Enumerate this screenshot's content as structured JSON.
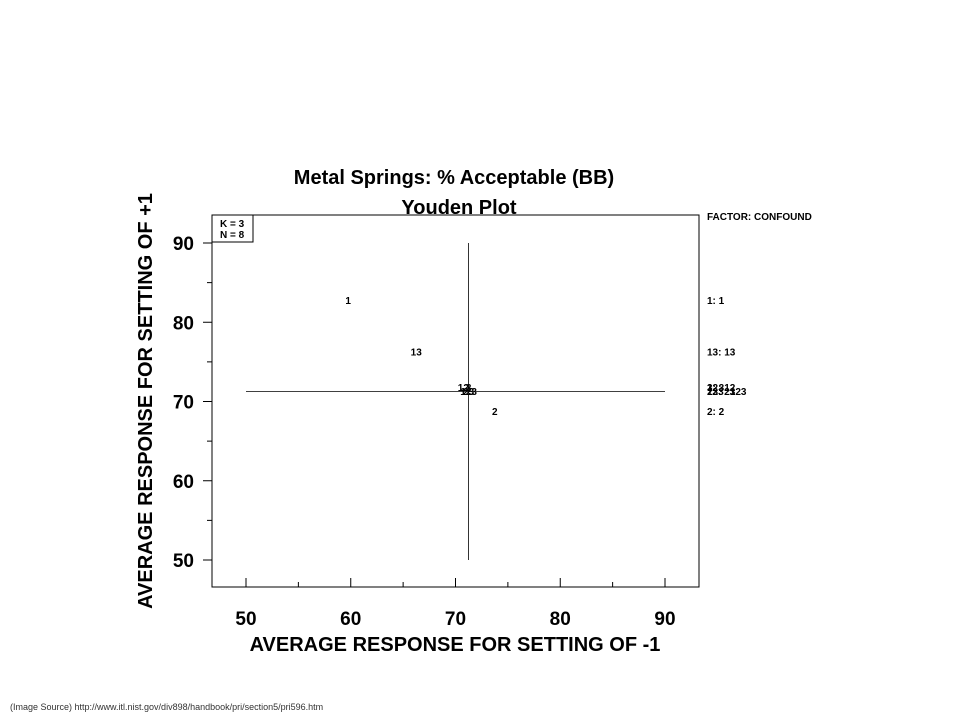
{
  "chart_data": {
    "type": "scatter",
    "title": "Metal Springs: % Acceptable (BB)",
    "subtitle": "Youden Plot",
    "xlabel": "AVERAGE RESPONSE FOR SETTING OF -1",
    "ylabel": "AVERAGE RESPONSE FOR SETTING OF +1",
    "xlim": [
      50,
      90
    ],
    "ylim": [
      50,
      90
    ],
    "x_ticks": [
      50,
      60,
      70,
      80,
      90
    ],
    "y_ticks": [
      50,
      60,
      70,
      80,
      90
    ],
    "grid": false,
    "info_box": [
      "K = 3",
      "N = 8"
    ],
    "reference_lines": {
      "x": 71.25,
      "y": 71.25
    },
    "points": [
      {
        "label": "1",
        "x": 59.75,
        "y": 82.75
      },
      {
        "label": "13",
        "x": 66.25,
        "y": 76.25
      },
      {
        "label": "12",
        "x": 70.75,
        "y": 71.75
      },
      {
        "label": "3",
        "x": 71.25,
        "y": 71.75
      },
      {
        "label": "23",
        "x": 71.25,
        "y": 71.25
      },
      {
        "label": "123",
        "x": 71.25,
        "y": 71.25
      },
      {
        "label": "2",
        "x": 73.75,
        "y": 68.75
      }
    ],
    "legend_title": "FACTOR: CONFOUND",
    "legend": [
      {
        "entry": "1:   1",
        "y": 82.75
      },
      {
        "entry": "13:  13",
        "y": 76.25
      },
      {
        "entry": "12:  12",
        "y": 71.75
      },
      {
        "entry": "3:   3",
        "y": 71.75
      },
      {
        "entry": "23:  23",
        "y": 71.25
      },
      {
        "entry": "123: 123",
        "y": 71.25
      },
      {
        "entry": "2:   2",
        "y": 68.75
      }
    ]
  },
  "source_note": "(Image Source) http://www.itl.nist.gov/div898/handbook/pri/section5/pri596.htm"
}
